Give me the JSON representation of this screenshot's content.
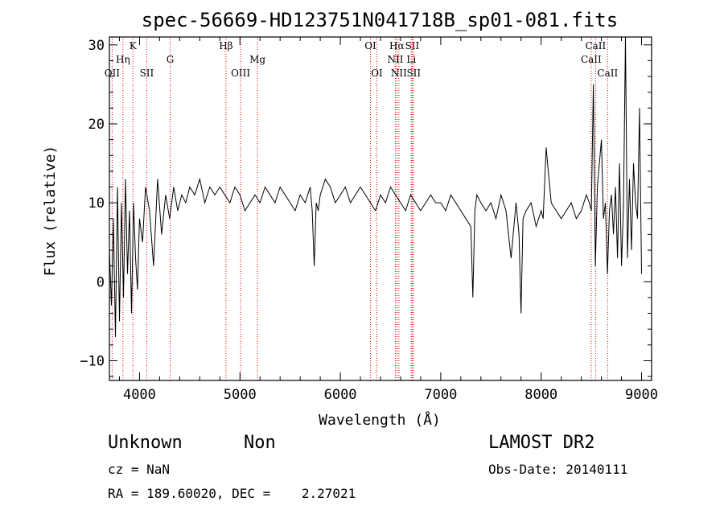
{
  "chart_data": {
    "type": "line",
    "title": "spec-56669-HD123751N041718B_sp01-081.fits",
    "xlabel": "Wavelength (Å)",
    "ylabel": "Flux (relative)",
    "xlim": [
      3700,
      9100
    ],
    "ylim": [
      -12.5,
      31
    ],
    "xticks": [
      4000,
      5000,
      6000,
      7000,
      8000,
      9000
    ],
    "yticks": [
      -10,
      0,
      10,
      20,
      30
    ],
    "grid": false,
    "series": [
      {
        "color": "#000000",
        "x": [
          3700,
          3720,
          3740,
          3760,
          3780,
          3800,
          3820,
          3840,
          3860,
          3880,
          3900,
          3920,
          3940,
          3960,
          3980,
          4000,
          4030,
          4060,
          4100,
          4140,
          4180,
          4220,
          4260,
          4300,
          4340,
          4380,
          4420,
          4460,
          4500,
          4550,
          4600,
          4650,
          4700,
          4750,
          4800,
          4850,
          4900,
          4950,
          5000,
          5050,
          5100,
          5150,
          5200,
          5250,
          5300,
          5350,
          5400,
          5450,
          5500,
          5550,
          5600,
          5650,
          5700,
          5720,
          5740,
          5760,
          5780,
          5800,
          5850,
          5900,
          5950,
          6000,
          6050,
          6100,
          6150,
          6200,
          6250,
          6300,
          6350,
          6400,
          6450,
          6500,
          6550,
          6600,
          6650,
          6700,
          6750,
          6800,
          6850,
          6900,
          6950,
          7000,
          7050,
          7100,
          7150,
          7200,
          7250,
          7300,
          7320,
          7340,
          7360,
          7400,
          7450,
          7500,
          7550,
          7600,
          7650,
          7700,
          7750,
          7780,
          7800,
          7820,
          7850,
          7900,
          7950,
          8000,
          8020,
          8050,
          8100,
          8150,
          8200,
          8250,
          8300,
          8350,
          8400,
          8450,
          8480,
          8500,
          8520,
          8540,
          8560,
          8600,
          8620,
          8640,
          8660,
          8680,
          8700,
          8720,
          8740,
          8760,
          8780,
          8800,
          8820,
          8840,
          8860,
          8880,
          8900,
          8920,
          8940,
          8960,
          8980,
          9000
        ],
        "y": [
          4,
          -3,
          8,
          -7,
          12,
          -5,
          10,
          -2,
          13,
          1,
          9,
          -4,
          10,
          3,
          -1,
          8,
          5,
          12,
          9,
          2,
          13,
          6,
          11,
          8,
          12,
          9,
          11,
          10,
          12,
          11,
          13,
          10,
          12,
          11,
          12,
          11,
          10,
          12,
          11,
          9,
          10,
          11,
          10,
          12,
          11,
          10,
          12,
          11,
          10,
          9,
          11,
          10,
          12,
          9,
          2,
          10,
          9,
          11,
          13,
          12,
          10,
          11,
          12,
          10,
          11,
          12,
          11,
          10,
          9,
          11,
          10,
          12,
          11,
          10,
          9,
          11,
          10,
          9,
          10,
          11,
          10,
          10,
          9,
          11,
          10,
          9,
          8,
          7,
          -2,
          9,
          11,
          10,
          9,
          10,
          8,
          11,
          9,
          3,
          10,
          6,
          -4,
          8,
          9,
          10,
          7,
          9,
          8,
          17,
          10,
          9,
          8,
          9,
          10,
          8,
          9,
          11,
          10,
          9,
          25,
          2,
          12,
          18,
          8,
          10,
          1,
          9,
          11,
          6,
          12,
          3,
          15,
          2,
          10,
          31,
          3,
          13,
          4,
          15,
          10,
          8,
          22,
          1
        ]
      }
    ],
    "annotations": {
      "lines": [
        {
          "label": "OII",
          "x": 3727,
          "row": 3
        },
        {
          "label": "Hη",
          "x": 3835,
          "row": 2
        },
        {
          "label": "K",
          "x": 3934,
          "row": 1
        },
        {
          "label": "SII",
          "x": 4072,
          "row": 3
        },
        {
          "label": "G",
          "x": 4305,
          "row": 2
        },
        {
          "label": "Hβ",
          "x": 4861,
          "row": 1
        },
        {
          "label": "OIII",
          "x": 5007,
          "row": 3
        },
        {
          "label": "Mg",
          "x": 5175,
          "row": 2
        },
        {
          "label": "OI",
          "x": 6300,
          "row": 1
        },
        {
          "label": "OI",
          "x": 6364,
          "row": 3
        },
        {
          "label": "NII",
          "x": 6548,
          "row": 2
        },
        {
          "label": "Hα",
          "x": 6563,
          "row": 1
        },
        {
          "label": "NII",
          "x": 6583,
          "row": 3
        },
        {
          "label": "SII",
          "x": 6716,
          "row": 1
        },
        {
          "label": "Li",
          "x": 6707,
          "row": 2
        },
        {
          "label": "SII",
          "x": 6731,
          "row": 3
        },
        {
          "label": "CaII",
          "x": 8498,
          "row": 2
        },
        {
          "label": "CaII",
          "x": 8542,
          "row": 1
        },
        {
          "label": "CaII",
          "x": 8662,
          "row": 3
        }
      ]
    }
  },
  "info": {
    "class": "Unknown",
    "subclass": "Non",
    "survey": "LAMOST DR2",
    "cz": "cz = NaN",
    "obs_date": "Obs-Date: 20140111",
    "coords": "RA = 189.60020, DEC =    2.27021"
  }
}
